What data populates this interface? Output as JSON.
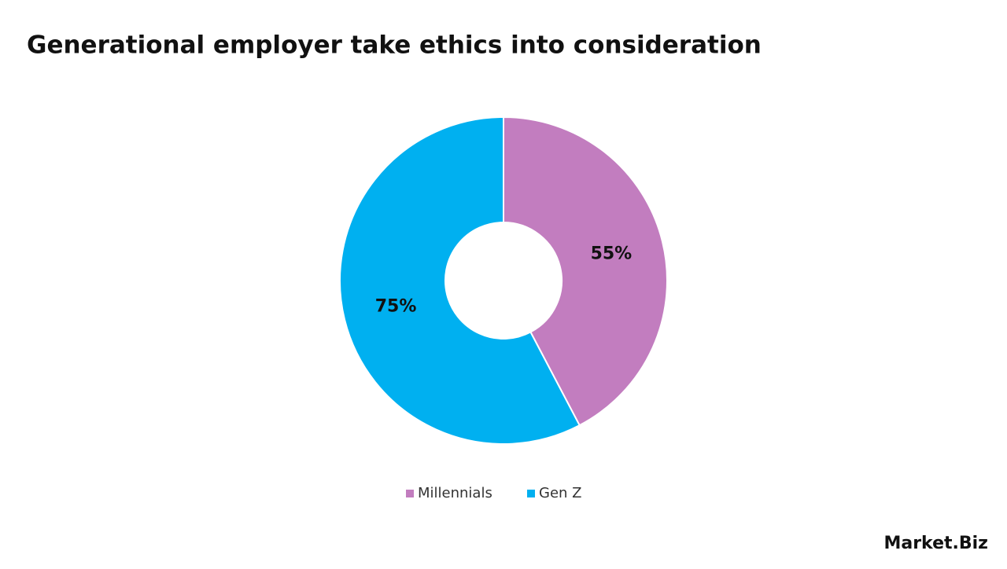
{
  "chart_data": {
    "type": "donut",
    "title": "Generational employer take ethics into consideration",
    "categories": [
      "Millennials",
      "Gen Z"
    ],
    "values": [
      55,
      75
    ],
    "value_labels": [
      "55%",
      "75%"
    ],
    "colors": [
      "#c27dbf",
      "#00b0f0"
    ],
    "legend": "bottom"
  },
  "logo": "Market.Biz"
}
